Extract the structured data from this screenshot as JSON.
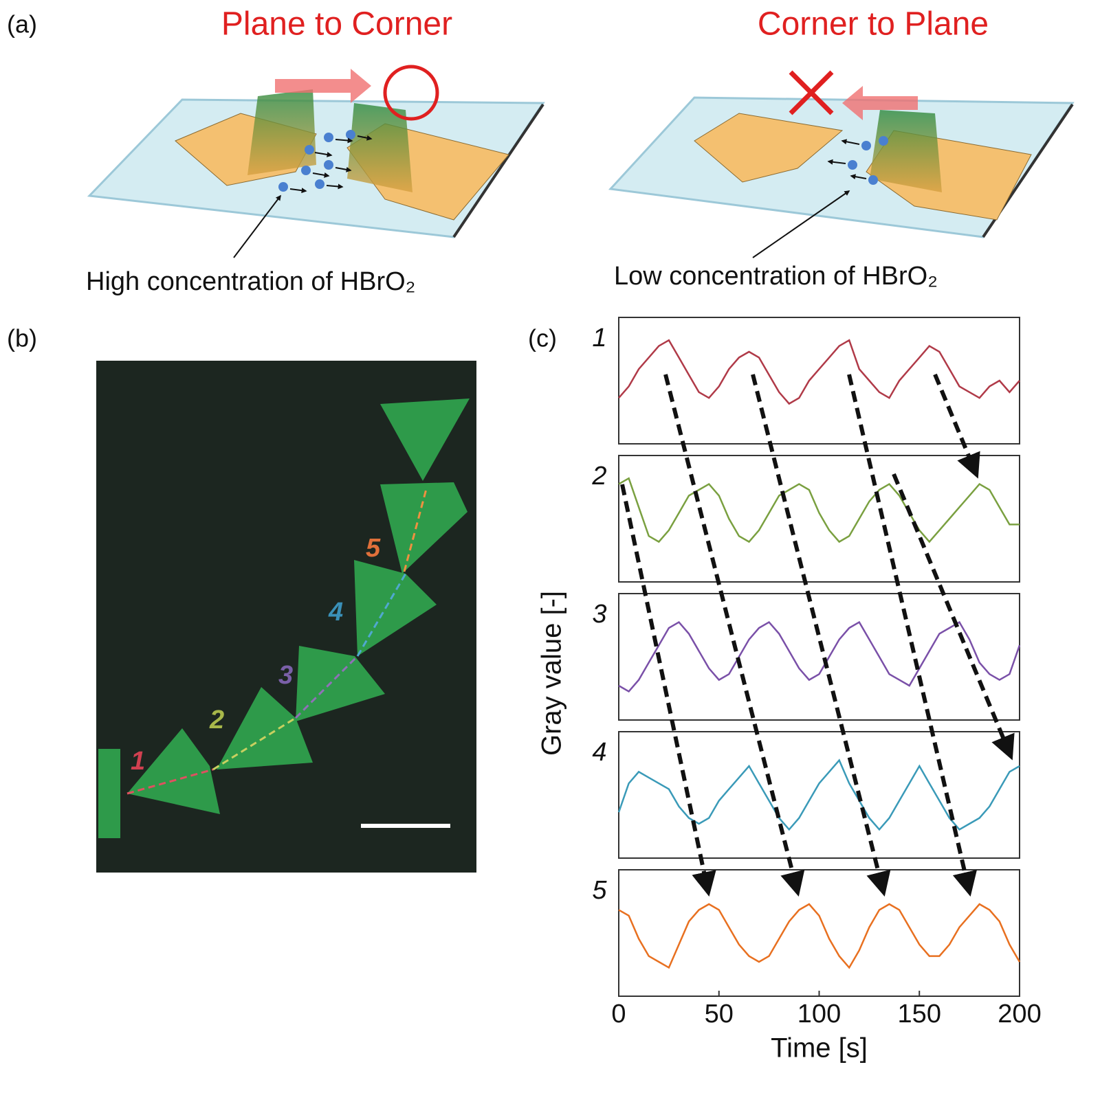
{
  "panel_labels": [
    "(a)",
    "(b)",
    "(c)"
  ],
  "panel_a": {
    "left_title": "Plane to Corner",
    "right_title": "Corner to Plane",
    "left_caption": "High concentration of HBrO₂",
    "right_caption": "Low concentration of HBrO₂"
  },
  "panel_b": {
    "labels": [
      "1",
      "2",
      "3",
      "4",
      "5"
    ]
  },
  "chart_data": {
    "type": "line",
    "xlabel": "Time [s]",
    "ylabel": "Gray value [-]",
    "xlim": [
      0,
      200
    ],
    "xticks": [
      0,
      50,
      100,
      150,
      200
    ],
    "ylim": [
      0,
      1
    ],
    "x": [
      0,
      5,
      10,
      15,
      20,
      25,
      30,
      35,
      40,
      45,
      50,
      55,
      60,
      65,
      70,
      75,
      80,
      85,
      90,
      95,
      100,
      105,
      110,
      115,
      120,
      125,
      130,
      135,
      140,
      145,
      150,
      155,
      160,
      165,
      170,
      175,
      180,
      185,
      190,
      195,
      200
    ],
    "series": [
      {
        "name": "1",
        "color": "#b03a48",
        "values": [
          0.35,
          0.45,
          0.6,
          0.7,
          0.8,
          0.85,
          0.7,
          0.55,
          0.4,
          0.35,
          0.45,
          0.6,
          0.7,
          0.75,
          0.7,
          0.55,
          0.4,
          0.3,
          0.35,
          0.5,
          0.6,
          0.7,
          0.8,
          0.85,
          0.6,
          0.5,
          0.4,
          0.35,
          0.5,
          0.6,
          0.7,
          0.8,
          0.75,
          0.6,
          0.45,
          0.4,
          0.35,
          0.45,
          0.5,
          0.4,
          0.5
        ]
      },
      {
        "name": "2",
        "color": "#7aa040",
        "values": [
          0.8,
          0.85,
          0.6,
          0.35,
          0.3,
          0.4,
          0.55,
          0.7,
          0.75,
          0.8,
          0.7,
          0.5,
          0.35,
          0.3,
          0.4,
          0.55,
          0.7,
          0.75,
          0.8,
          0.75,
          0.55,
          0.4,
          0.3,
          0.35,
          0.5,
          0.65,
          0.75,
          0.8,
          0.7,
          0.55,
          0.4,
          0.3,
          0.4,
          0.5,
          0.6,
          0.7,
          0.8,
          0.75,
          0.6,
          0.45,
          0.45
        ]
      },
      {
        "name": "3",
        "color": "#7a50a8",
        "values": [
          0.25,
          0.2,
          0.3,
          0.45,
          0.6,
          0.75,
          0.8,
          0.7,
          0.55,
          0.4,
          0.3,
          0.35,
          0.5,
          0.65,
          0.75,
          0.8,
          0.7,
          0.55,
          0.4,
          0.3,
          0.35,
          0.5,
          0.65,
          0.75,
          0.8,
          0.65,
          0.5,
          0.35,
          0.3,
          0.25,
          0.4,
          0.55,
          0.7,
          0.75,
          0.8,
          0.65,
          0.45,
          0.35,
          0.3,
          0.35,
          0.6
        ]
      },
      {
        "name": "4",
        "color": "#3a9ab8",
        "values": [
          0.35,
          0.6,
          0.7,
          0.65,
          0.6,
          0.55,
          0.4,
          0.3,
          0.25,
          0.3,
          0.45,
          0.55,
          0.65,
          0.75,
          0.6,
          0.45,
          0.3,
          0.2,
          0.3,
          0.45,
          0.6,
          0.7,
          0.8,
          0.6,
          0.45,
          0.3,
          0.2,
          0.3,
          0.45,
          0.6,
          0.75,
          0.6,
          0.45,
          0.3,
          0.2,
          0.25,
          0.3,
          0.4,
          0.55,
          0.7,
          0.75
        ]
      },
      {
        "name": "5",
        "color": "#e87020",
        "values": [
          0.7,
          0.65,
          0.45,
          0.3,
          0.25,
          0.2,
          0.4,
          0.6,
          0.7,
          0.75,
          0.7,
          0.55,
          0.4,
          0.3,
          0.25,
          0.3,
          0.45,
          0.6,
          0.7,
          0.75,
          0.65,
          0.45,
          0.3,
          0.2,
          0.35,
          0.55,
          0.7,
          0.75,
          0.7,
          0.55,
          0.4,
          0.3,
          0.3,
          0.4,
          0.55,
          0.65,
          0.75,
          0.7,
          0.6,
          0.4,
          0.25
        ]
      }
    ]
  }
}
